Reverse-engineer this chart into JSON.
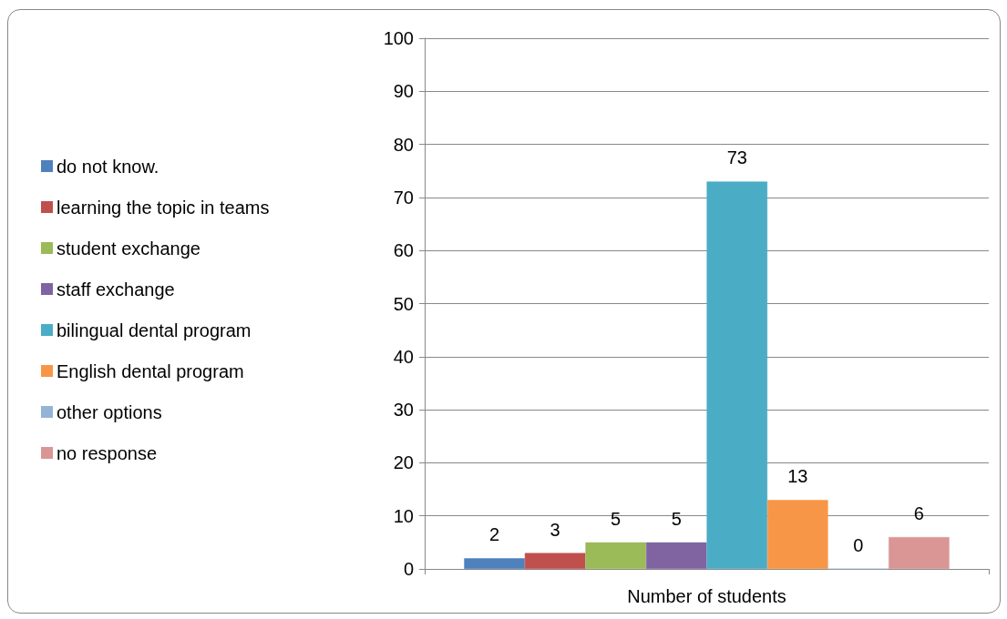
{
  "chart_data": {
    "type": "bar",
    "categories": [
      "Number of students"
    ],
    "series": [
      {
        "name": "do not know.",
        "color": "#4f81bd",
        "values": [
          2
        ]
      },
      {
        "name": "learning the topic in teams",
        "color": "#c0504d",
        "values": [
          3
        ]
      },
      {
        "name": "student exchange",
        "color": "#9bbb59",
        "values": [
          5
        ]
      },
      {
        "name": "staff exchange",
        "color": "#8064a2",
        "values": [
          5
        ]
      },
      {
        "name": "bilingual dental program",
        "color": "#4bacc6",
        "values": [
          73
        ]
      },
      {
        "name": "English dental program",
        "color": "#f79646",
        "values": [
          13
        ]
      },
      {
        "name": "other options",
        "color": "#95b3d7",
        "values": [
          0
        ]
      },
      {
        "name": "no response",
        "color": "#d99694",
        "values": [
          6
        ]
      }
    ],
    "ylim": [
      0,
      100
    ],
    "yticks": [
      0,
      10,
      20,
      30,
      40,
      50,
      60,
      70,
      80,
      90,
      100
    ],
    "grid": "y",
    "legend": "left",
    "data_labels": true
  }
}
